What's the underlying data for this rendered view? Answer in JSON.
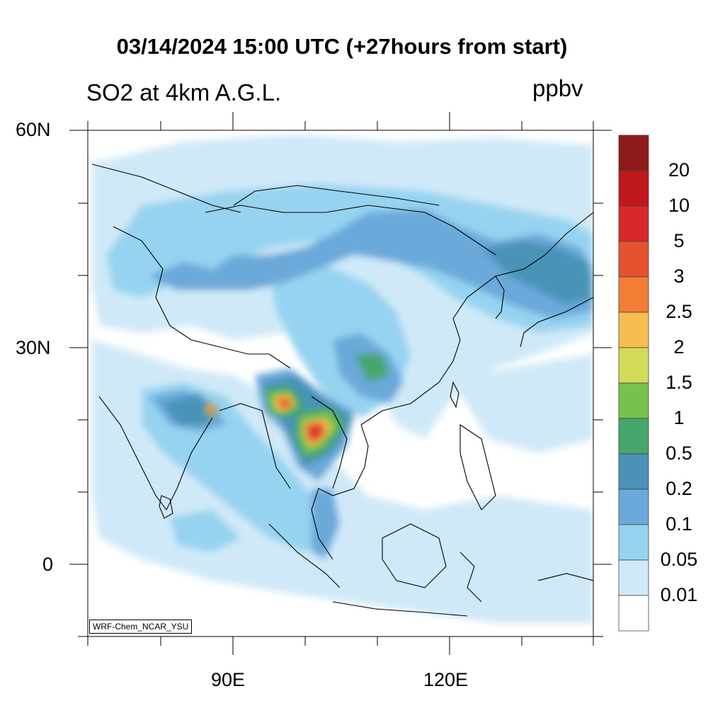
{
  "header": {
    "title": "03/14/2024 15:00 UTC (+27hours from start)",
    "variable": "SO2 at 4km A.G.L.",
    "units": "ppbv"
  },
  "axes": {
    "lat_labels": [
      "60N",
      "30N",
      "0"
    ],
    "lon_labels": [
      "90E",
      "120E"
    ]
  },
  "credit": "WRF-Chem_NCAR_YSU",
  "legend": {
    "levels": [
      "20",
      "10",
      "5",
      "3",
      "2.5",
      "2",
      "1.5",
      "1",
      "0.5",
      "0.2",
      "0.1",
      "0.05",
      "0.01"
    ],
    "colors": [
      "#8e1a1a",
      "#c0171d",
      "#d8282c",
      "#e6512f",
      "#f27d35",
      "#f6bd4f",
      "#d3dc59",
      "#77c24c",
      "#46a66c",
      "#4a93b7",
      "#6aa9da",
      "#96d3f0",
      "#cfe9f8",
      "#ffffff"
    ]
  },
  "colors": {
    "land_outline": "#000000",
    "background": "#ffffff"
  }
}
